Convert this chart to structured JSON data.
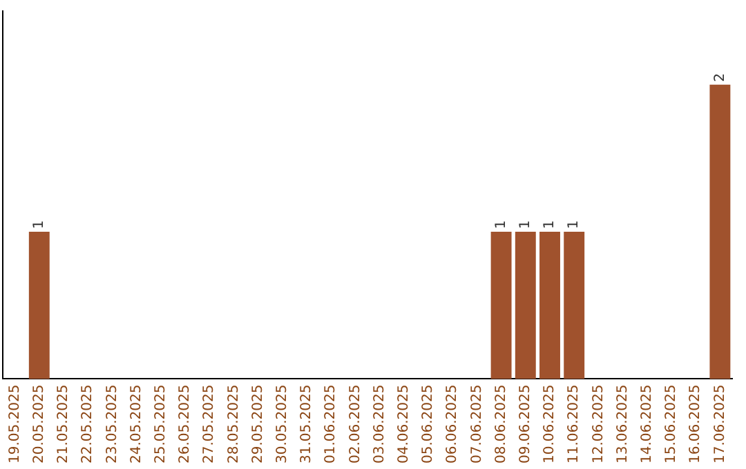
{
  "chart_data": {
    "type": "bar",
    "categories": [
      "19.05.2025",
      "20.05.2025",
      "21.05.2025",
      "22.05.2025",
      "23.05.2025",
      "24.05.2025",
      "25.05.2025",
      "26.05.2025",
      "27.05.2025",
      "28.05.2025",
      "29.05.2025",
      "30.05.2025",
      "31.05.2025",
      "01.06.2025",
      "02.06.2025",
      "03.06.2025",
      "04.06.2025",
      "05.06.2025",
      "06.06.2025",
      "07.06.2025",
      "08.06.2025",
      "09.06.2025",
      "10.06.2025",
      "11.06.2025",
      "12.06.2025",
      "13.06.2025",
      "14.06.2025",
      "15.06.2025",
      "16.06.2025",
      "17.06.2025"
    ],
    "values": [
      0,
      1,
      0,
      0,
      0,
      0,
      0,
      0,
      0,
      0,
      0,
      0,
      0,
      0,
      0,
      0,
      0,
      0,
      0,
      0,
      1,
      1,
      1,
      1,
      0,
      0,
      0,
      0,
      0,
      2
    ],
    "value_labels": [
      null,
      "1",
      null,
      null,
      null,
      null,
      null,
      null,
      null,
      null,
      null,
      null,
      null,
      null,
      null,
      null,
      null,
      null,
      null,
      null,
      "1",
      "1",
      "1",
      "1",
      null,
      null,
      null,
      null,
      null,
      "2"
    ],
    "color": "#a0522d",
    "grid": false,
    "legend": false,
    "tick_labels": "x"
  }
}
